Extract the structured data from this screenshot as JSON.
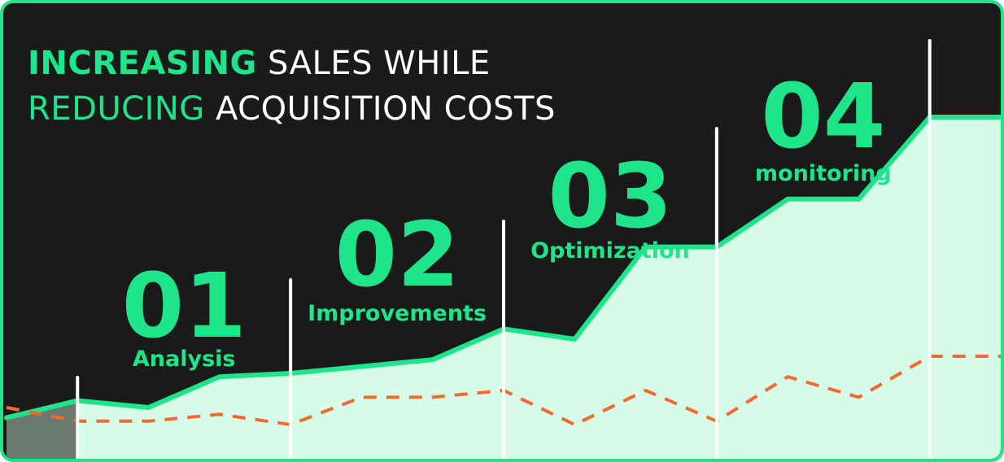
{
  "headline": {
    "line1_accent": "INCREASING",
    "line1_rest": " SALES WHILE",
    "line2_accent": "REDUCING",
    "line2_rest": " ACQUISITION COSTS"
  },
  "colors": {
    "background": "#1a1a1a",
    "accent": "#1ee589",
    "area_fill": "#d6fbe9",
    "cost_line": "#f26b2e",
    "muted_area": "#6a7a70",
    "divider": "#ffffff"
  },
  "chart_data": {
    "type": "area",
    "title": "INCREASING SALES WHILE REDUCING ACQUISITION COSTS",
    "xlabel": "",
    "ylabel": "",
    "ylim": [
      0,
      100
    ],
    "x": [
      0,
      1,
      2,
      3,
      4,
      5,
      6,
      7,
      8,
      9,
      10,
      11,
      12,
      13,
      14
    ],
    "series": [
      {
        "name": "Sales",
        "style": "solid-area",
        "values": [
          12,
          17,
          15,
          24,
          25,
          27,
          29,
          38,
          35,
          62,
          62,
          76,
          76,
          100,
          100
        ]
      },
      {
        "name": "Acquisition costs",
        "style": "dashed",
        "values": [
          15,
          11,
          11,
          13,
          10,
          18,
          18,
          20,
          10,
          20,
          11,
          24,
          18,
          30,
          30
        ]
      }
    ],
    "stages": [
      {
        "number": "01",
        "label": "Analysis",
        "start_x": 1
      },
      {
        "number": "02",
        "label": "Improvements",
        "start_x": 4
      },
      {
        "number": "03",
        "label": "Optimization",
        "start_x": 7
      },
      {
        "number": "04",
        "label": "monitoring",
        "start_x": 10
      },
      {
        "number": "",
        "label": "",
        "start_x": 13
      }
    ]
  }
}
